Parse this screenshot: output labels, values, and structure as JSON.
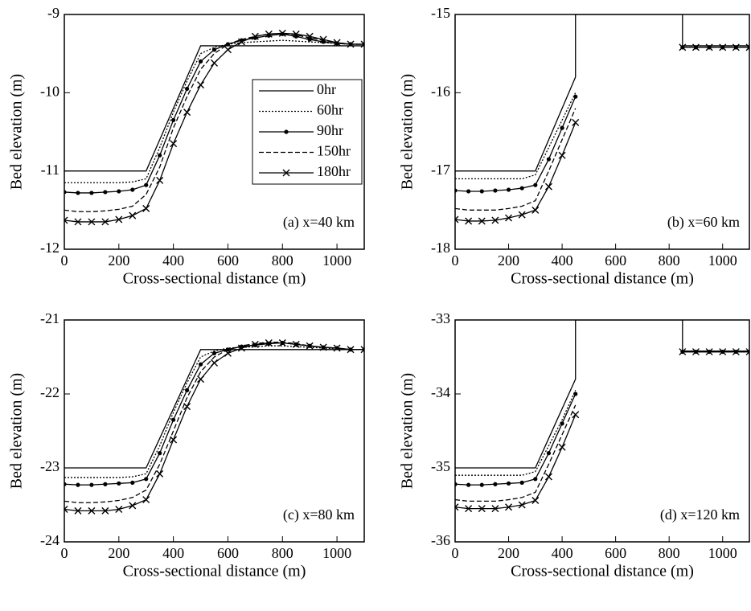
{
  "chart_data": [
    {
      "type": "line",
      "annotation": "(a) x=40 km",
      "x_label": "Cross-sectional distance (m)",
      "y_label": "Bed elevation (m)",
      "xlim": [
        0,
        1100
      ],
      "ylim": [
        -12,
        -9
      ],
      "xticks": [
        0,
        200,
        400,
        600,
        800,
        1000
      ],
      "yticks": [
        -12,
        -11,
        -10,
        -9
      ],
      "legend": "center right",
      "x": [
        0,
        50,
        100,
        150,
        200,
        250,
        300,
        350,
        400,
        450,
        500,
        550,
        600,
        650,
        700,
        750,
        800,
        850,
        900,
        950,
        1000,
        1050,
        1100
      ],
      "series": [
        {
          "name": "0hr",
          "color": "#000000",
          "dash": "solid",
          "marker": "none",
          "values": [
            -11,
            -11,
            -11,
            -11,
            -11,
            -11,
            -11,
            -10.6,
            -10.2,
            -9.8,
            -9.4,
            -9.4,
            -9.4,
            -9.4,
            -9.4,
            -9.4,
            -9.4,
            -9.4,
            -9.4,
            -9.4,
            -9.4,
            -9.4,
            -9.4
          ]
        },
        {
          "name": "60hr",
          "color": "#000000",
          "dash": "dotted",
          "marker": "none",
          "values": [
            -11.15,
            -11.15,
            -11.15,
            -11.15,
            -11.15,
            -11.14,
            -11.1,
            -10.7,
            -10.25,
            -9.85,
            -9.5,
            -9.42,
            -9.38,
            -9.36,
            -9.35,
            -9.34,
            -9.33,
            -9.34,
            -9.35,
            -9.36,
            -9.37,
            -9.38,
            -9.38
          ]
        },
        {
          "name": "90hr",
          "color": "#000000",
          "dash": "solid",
          "marker": "dot",
          "values": [
            -11.27,
            -11.28,
            -11.28,
            -11.27,
            -11.26,
            -11.24,
            -11.18,
            -10.8,
            -10.35,
            -9.95,
            -9.6,
            -9.45,
            -9.38,
            -9.33,
            -9.3,
            -9.27,
            -9.25,
            -9.28,
            -9.32,
            -9.35,
            -9.37,
            -9.38,
            -9.38
          ]
        },
        {
          "name": "150hr",
          "color": "#000000",
          "dash": "dashed",
          "marker": "none",
          "values": [
            -11.5,
            -11.52,
            -11.52,
            -11.51,
            -11.49,
            -11.45,
            -11.3,
            -10.95,
            -10.45,
            -10.05,
            -9.7,
            -9.5,
            -9.38,
            -9.32,
            -9.28,
            -9.25,
            -9.24,
            -9.26,
            -9.3,
            -9.33,
            -9.36,
            -9.38,
            -9.38
          ]
        },
        {
          "name": "180hr",
          "color": "#000000",
          "dash": "solid",
          "marker": "x",
          "values": [
            -11.63,
            -11.65,
            -11.65,
            -11.65,
            -11.62,
            -11.57,
            -11.48,
            -11.12,
            -10.65,
            -10.25,
            -9.9,
            -9.62,
            -9.45,
            -9.35,
            -9.28,
            -9.25,
            -9.24,
            -9.25,
            -9.28,
            -9.32,
            -9.36,
            -9.38,
            -9.38
          ]
        }
      ]
    },
    {
      "type": "line",
      "annotation": "(b) x=60 km",
      "x_label": "Cross-sectional distance (m)",
      "y_label": "Bed elevation (m)",
      "xlim": [
        0,
        1100
      ],
      "ylim": [
        -18,
        -15
      ],
      "xticks": [
        0,
        200,
        400,
        600,
        800,
        1000
      ],
      "yticks": [
        -18,
        -17,
        -16,
        -15
      ],
      "x": [
        0,
        50,
        100,
        150,
        200,
        250,
        300,
        350,
        400,
        450,
        450,
        850,
        850,
        900,
        950,
        1000,
        1050,
        1100
      ],
      "series": [
        {
          "name": "0hr",
          "color": "#000000",
          "dash": "solid",
          "marker": "none",
          "values": [
            -17,
            -17,
            -17,
            -17,
            -17,
            -17,
            -17,
            -16.6,
            -16.2,
            -15.8,
            -15,
            -15,
            -15.4,
            -15.4,
            -15.4,
            -15.4,
            -15.4,
            -15.4
          ]
        },
        {
          "name": "60hr",
          "color": "#000000",
          "dash": "dotted",
          "marker": "none",
          "values": [
            -17.1,
            -17.1,
            -17.1,
            -17.1,
            -17.1,
            -17.1,
            -17.05,
            -16.7,
            -16.35,
            -16.0,
            null,
            null,
            -15.42,
            -15.42,
            -15.42,
            -15.42,
            -15.42,
            -15.42
          ]
        },
        {
          "name": "90hr",
          "color": "#000000",
          "dash": "solid",
          "marker": "dot",
          "values": [
            -17.25,
            -17.26,
            -17.26,
            -17.25,
            -17.24,
            -17.22,
            -17.18,
            -16.85,
            -16.45,
            -16.05,
            null,
            null,
            -15.42,
            -15.42,
            -15.42,
            -15.42,
            -15.42,
            -15.42
          ]
        },
        {
          "name": "150hr",
          "color": "#000000",
          "dash": "dashed",
          "marker": "none",
          "values": [
            -17.48,
            -17.5,
            -17.5,
            -17.5,
            -17.48,
            -17.45,
            -17.38,
            -17.0,
            -16.6,
            -16.2,
            null,
            null,
            -15.42,
            -15.42,
            -15.42,
            -15.42,
            -15.42,
            -15.42
          ]
        },
        {
          "name": "180hr",
          "color": "#000000",
          "dash": "solid",
          "marker": "x",
          "values": [
            -17.62,
            -17.64,
            -17.64,
            -17.63,
            -17.6,
            -17.56,
            -17.5,
            -17.2,
            -16.8,
            -16.38,
            null,
            null,
            -15.42,
            -15.42,
            -15.42,
            -15.42,
            -15.42,
            -15.42
          ]
        }
      ]
    },
    {
      "type": "line",
      "annotation": "(c) x=80 km",
      "x_label": "Cross-sectional distance (m)",
      "y_label": "Bed elevation (m)",
      "xlim": [
        0,
        1100
      ],
      "ylim": [
        -24,
        -21
      ],
      "xticks": [
        0,
        200,
        400,
        600,
        800,
        1000
      ],
      "yticks": [
        -24,
        -23,
        -22,
        -21
      ],
      "x": [
        0,
        50,
        100,
        150,
        200,
        250,
        300,
        350,
        400,
        450,
        500,
        550,
        600,
        650,
        700,
        750,
        800,
        850,
        900,
        950,
        1000,
        1050,
        1100
      ],
      "series": [
        {
          "name": "0hr",
          "color": "#000000",
          "dash": "solid",
          "marker": "none",
          "values": [
            -23,
            -23,
            -23,
            -23,
            -23,
            -23,
            -23,
            -22.6,
            -22.2,
            -21.8,
            -21.4,
            -21.4,
            -21.4,
            -21.4,
            -21.4,
            -21.4,
            -21.4,
            -21.4,
            -21.4,
            -21.4,
            -21.4,
            -21.4,
            -21.4
          ]
        },
        {
          "name": "60hr",
          "color": "#000000",
          "dash": "dotted",
          "marker": "none",
          "values": [
            -23.13,
            -23.13,
            -23.13,
            -23.13,
            -23.13,
            -23.12,
            -23.08,
            -22.7,
            -22.25,
            -21.85,
            -21.5,
            -21.42,
            -21.38,
            -21.37,
            -21.36,
            -21.35,
            -21.35,
            -21.36,
            -21.37,
            -21.38,
            -21.39,
            -21.4,
            -21.4
          ]
        },
        {
          "name": "90hr",
          "color": "#000000",
          "dash": "solid",
          "marker": "dot",
          "values": [
            -23.22,
            -23.23,
            -23.23,
            -23.22,
            -23.21,
            -23.2,
            -23.15,
            -22.8,
            -22.35,
            -21.95,
            -21.6,
            -21.45,
            -21.4,
            -21.36,
            -21.34,
            -21.32,
            -21.31,
            -21.33,
            -21.35,
            -21.37,
            -21.38,
            -21.4,
            -21.4
          ]
        },
        {
          "name": "150hr",
          "color": "#000000",
          "dash": "dashed",
          "marker": "none",
          "values": [
            -23.45,
            -23.47,
            -23.47,
            -23.46,
            -23.44,
            -23.4,
            -23.3,
            -22.95,
            -22.5,
            -22.05,
            -21.7,
            -21.5,
            -21.4,
            -21.35,
            -21.32,
            -21.3,
            -21.3,
            -21.32,
            -21.35,
            -21.37,
            -21.38,
            -21.4,
            -21.4
          ]
        },
        {
          "name": "180hr",
          "color": "#000000",
          "dash": "solid",
          "marker": "x",
          "values": [
            -23.56,
            -23.58,
            -23.58,
            -23.58,
            -23.56,
            -23.51,
            -23.43,
            -23.08,
            -22.62,
            -22.17,
            -21.8,
            -21.58,
            -21.45,
            -21.38,
            -21.33,
            -21.31,
            -21.31,
            -21.33,
            -21.35,
            -21.37,
            -21.38,
            -21.4,
            -21.4
          ]
        }
      ]
    },
    {
      "type": "line",
      "annotation": "(d) x=120 km",
      "x_label": "Cross-sectional distance (m)",
      "y_label": "Bed elevation (m)",
      "xlim": [
        0,
        1100
      ],
      "ylim": [
        -36,
        -33
      ],
      "xticks": [
        0,
        200,
        400,
        600,
        800,
        1000
      ],
      "yticks": [
        -36,
        -35,
        -34,
        -33
      ],
      "x": [
        0,
        50,
        100,
        150,
        200,
        250,
        300,
        350,
        400,
        450,
        450,
        850,
        850,
        900,
        950,
        1000,
        1050,
        1100
      ],
      "series": [
        {
          "name": "0hr",
          "color": "#000000",
          "dash": "solid",
          "marker": "none",
          "values": [
            -35,
            -35,
            -35,
            -35,
            -35,
            -35,
            -35,
            -34.6,
            -34.2,
            -33.8,
            -33,
            -33,
            -33.42,
            -33.42,
            -33.42,
            -33.42,
            -33.42,
            -33.42
          ]
        },
        {
          "name": "60hr",
          "color": "#000000",
          "dash": "dotted",
          "marker": "none",
          "values": [
            -35.1,
            -35.1,
            -35.1,
            -35.1,
            -35.1,
            -35.1,
            -35.05,
            -34.7,
            -34.35,
            -33.95,
            null,
            null,
            -33.43,
            -33.43,
            -33.43,
            -33.43,
            -33.43,
            -33.43
          ]
        },
        {
          "name": "90hr",
          "color": "#000000",
          "dash": "solid",
          "marker": "dot",
          "values": [
            -35.22,
            -35.23,
            -35.23,
            -35.22,
            -35.21,
            -35.2,
            -35.15,
            -34.8,
            -34.4,
            -34.0,
            null,
            null,
            -33.43,
            -33.43,
            -33.43,
            -33.43,
            -33.43,
            -33.43
          ]
        },
        {
          "name": "150hr",
          "color": "#000000",
          "dash": "dashed",
          "marker": "none",
          "values": [
            -35.43,
            -35.45,
            -35.45,
            -35.45,
            -35.43,
            -35.4,
            -35.33,
            -34.95,
            -34.55,
            -34.15,
            null,
            null,
            -33.43,
            -33.43,
            -33.43,
            -33.43,
            -33.43,
            -33.43
          ]
        },
        {
          "name": "180hr",
          "color": "#000000",
          "dash": "solid",
          "marker": "x",
          "values": [
            -35.53,
            -35.55,
            -35.55,
            -35.55,
            -35.53,
            -35.5,
            -35.44,
            -35.12,
            -34.72,
            -34.28,
            null,
            null,
            -33.43,
            -33.43,
            -33.43,
            -33.43,
            -33.43,
            -33.43
          ]
        }
      ]
    }
  ]
}
